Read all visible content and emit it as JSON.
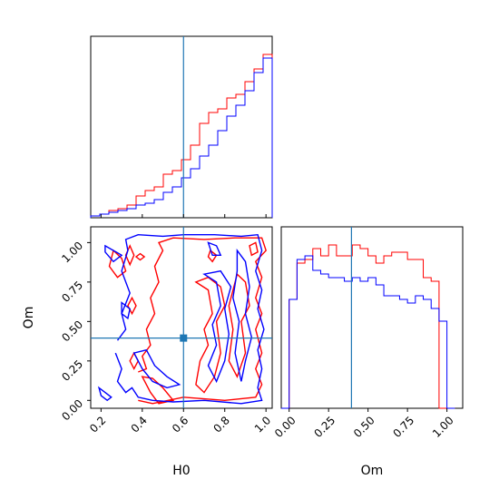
{
  "chart_data": {
    "type": "corner",
    "parameters": [
      "H0",
      "Om"
    ],
    "truth": {
      "H0": 0.6,
      "Om": 0.395
    },
    "colors": {
      "series_a": "#ff0000",
      "series_b": "#0000ff",
      "truth": "#1f77b4"
    },
    "panels": [
      {
        "id": "hist-H0",
        "type": "step-histogram",
        "parameter": "H0",
        "xlim": [
          0.15,
          1.03
        ],
        "bins": [
          0.15,
          0.194,
          0.238,
          0.282,
          0.326,
          0.37,
          0.414,
          0.458,
          0.502,
          0.546,
          0.59,
          0.634,
          0.678,
          0.722,
          0.766,
          0.81,
          0.854,
          0.898,
          0.942,
          0.986,
          1.03
        ],
        "series": [
          {
            "color": "#ff0000",
            "values": [
              1,
              2,
              4,
              5,
              7,
              12,
              15,
              17,
              24,
              26,
              32,
              40,
              52,
              58,
              60,
              66,
              68,
              75,
              82,
              90
            ]
          },
          {
            "color": "#0000ff",
            "values": [
              1,
              2,
              3,
              4,
              5,
              7,
              8,
              10,
              14,
              17,
              22,
              27,
              34,
              40,
              48,
              56,
              62,
              70,
              80,
              88
            ]
          }
        ]
      },
      {
        "id": "contour-H0-Om",
        "type": "contour",
        "x": "H0",
        "y": "Om",
        "xlim": [
          0.15,
          1.03
        ],
        "ylim": [
          -0.05,
          1.1
        ],
        "xticks": [
          "0.2",
          "0.4",
          "0.6",
          "0.8",
          "1.0"
        ],
        "yticks": [
          "0.00",
          "0.25",
          "0.50",
          "0.75",
          "1.00"
        ],
        "truth_marker": [
          0.6,
          0.395
        ]
      },
      {
        "id": "hist-Om",
        "type": "step-histogram",
        "parameter": "Om",
        "xlim": [
          -0.05,
          1.1
        ],
        "xticks": [
          "0.00",
          "0.25",
          "0.50",
          "0.75",
          "1.00"
        ],
        "bins": [
          -0.05,
          0.0,
          0.05,
          0.1,
          0.15,
          0.2,
          0.25,
          0.3,
          0.35,
          0.4,
          0.45,
          0.5,
          0.55,
          0.6,
          0.65,
          0.7,
          0.75,
          0.8,
          0.85,
          0.9,
          0.95,
          1.0,
          1.05
        ],
        "series": [
          {
            "color": "#ff0000",
            "values": [
              0,
              60,
              80,
              82,
              88,
              84,
              90,
              84,
              84,
              90,
              88,
              84,
              80,
              84,
              86,
              86,
              82,
              82,
              72,
              70,
              0,
              0
            ]
          },
          {
            "color": "#0000ff",
            "values": [
              0,
              60,
              82,
              84,
              76,
              74,
              72,
              72,
              70,
              72,
              70,
              72,
              68,
              62,
              62,
              60,
              58,
              62,
              60,
              55,
              48,
              0
            ]
          }
        ]
      }
    ],
    "xlabels": [
      "H0",
      "Om"
    ],
    "ylabel": "Om"
  }
}
